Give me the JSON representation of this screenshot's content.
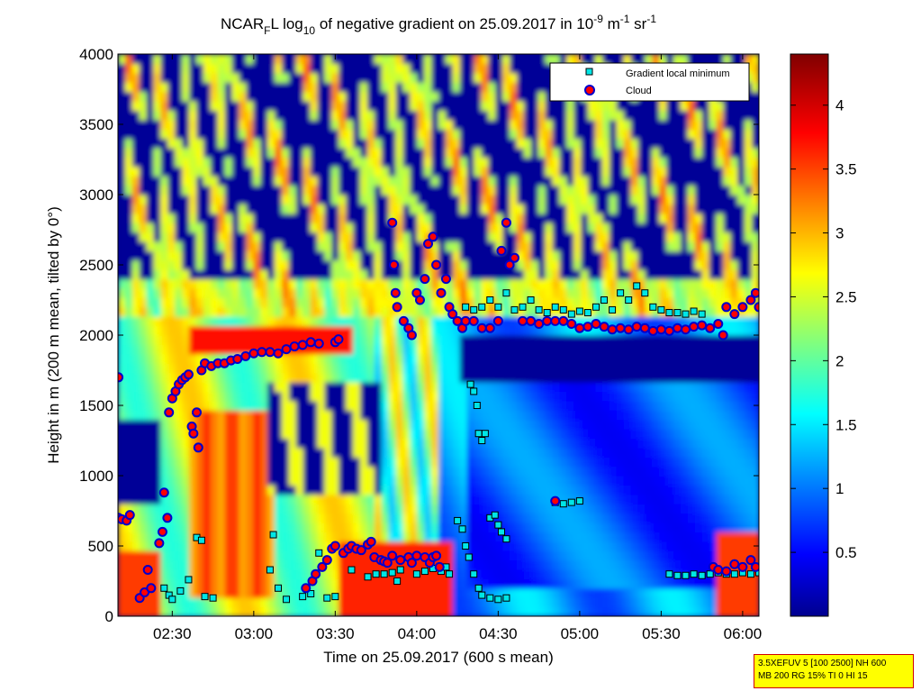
{
  "chart_data": {
    "type": "heatmap",
    "title": "NCAR",
    "title_sub": "F",
    "title_mid": "L log",
    "title_log_base": "10",
    "title_rest": " of negative gradient on 25.09.2017 in 10",
    "title_exp1": "-9",
    "title_unit1": " m",
    "title_exp2": "-1",
    "title_unit2": " sr",
    "title_exp3": "-1",
    "xlabel": "Time on 25.09.2017 (600 s mean)",
    "ylabel": "Height in m (200 m mean, tilted by 0°)",
    "x_range_hours": [
      2.1667,
      6.1
    ],
    "x_ticks": [
      {
        "value": 2.5,
        "label": "02:30"
      },
      {
        "value": 3.0,
        "label": "03:00"
      },
      {
        "value": 3.5,
        "label": "03:30"
      },
      {
        "value": 4.0,
        "label": "04:00"
      },
      {
        "value": 4.5,
        "label": "04:30"
      },
      {
        "value": 5.0,
        "label": "05:00"
      },
      {
        "value": 5.5,
        "label": "05:30"
      },
      {
        "value": 6.0,
        "label": "06:00"
      }
    ],
    "ylim": [
      0,
      4000
    ],
    "y_ticks": [
      0,
      500,
      1000,
      1500,
      2000,
      2500,
      3000,
      3500,
      4000
    ],
    "colorbar": {
      "range": [
        0,
        4.4
      ],
      "ticks": [
        0.5,
        1,
        1.5,
        2,
        2.5,
        3,
        3.5,
        4
      ],
      "colormap": "jet"
    },
    "legend": {
      "position": "top-right",
      "entries": [
        {
          "label": "Gradient local minimum",
          "marker": "square",
          "color": "#00e6e6"
        },
        {
          "label": "Cloud",
          "marker": "circle",
          "color": "#ff0000",
          "edge": "#0000cc"
        }
      ]
    },
    "series": [
      {
        "name": "Cloud",
        "points": [
          [
            2.17,
            1700
          ],
          [
            2.17,
            700
          ],
          [
            2.19,
            690
          ],
          [
            2.22,
            680
          ],
          [
            2.24,
            720
          ],
          [
            2.3,
            130
          ],
          [
            2.33,
            170
          ],
          [
            2.35,
            330
          ],
          [
            2.37,
            200
          ],
          [
            2.42,
            520
          ],
          [
            2.44,
            600
          ],
          [
            2.45,
            880
          ],
          [
            2.47,
            700
          ],
          [
            2.48,
            1450
          ],
          [
            2.5,
            1550
          ],
          [
            2.52,
            1600
          ],
          [
            2.54,
            1650
          ],
          [
            2.56,
            1680
          ],
          [
            2.58,
            1700
          ],
          [
            2.6,
            1720
          ],
          [
            2.62,
            1350
          ],
          [
            2.63,
            1300
          ],
          [
            2.65,
            1450
          ],
          [
            2.66,
            1200
          ],
          [
            2.68,
            1750
          ],
          [
            2.7,
            1800
          ],
          [
            2.74,
            1780
          ],
          [
            2.78,
            1800
          ],
          [
            2.82,
            1800
          ],
          [
            2.86,
            1820
          ],
          [
            2.9,
            1830
          ],
          [
            2.95,
            1850
          ],
          [
            3.0,
            1870
          ],
          [
            3.05,
            1880
          ],
          [
            3.1,
            1880
          ],
          [
            3.15,
            1870
          ],
          [
            3.2,
            1900
          ],
          [
            3.25,
            1920
          ],
          [
            3.3,
            1930
          ],
          [
            3.35,
            1950
          ],
          [
            3.4,
            1940
          ],
          [
            3.5,
            1950
          ],
          [
            3.52,
            1970
          ],
          [
            3.32,
            200
          ],
          [
            3.36,
            250
          ],
          [
            3.38,
            300
          ],
          [
            3.42,
            350
          ],
          [
            3.45,
            400
          ],
          [
            3.48,
            480
          ],
          [
            3.5,
            500
          ],
          [
            3.55,
            450
          ],
          [
            3.58,
            480
          ],
          [
            3.6,
            500
          ],
          [
            3.63,
            480
          ],
          [
            3.66,
            470
          ],
          [
            3.7,
            510
          ],
          [
            3.72,
            530
          ],
          [
            3.74,
            420
          ],
          [
            3.78,
            400
          ],
          [
            3.8,
            390
          ],
          [
            3.82,
            380
          ],
          [
            3.85,
            430
          ],
          [
            3.9,
            400
          ],
          [
            3.95,
            420
          ],
          [
            3.97,
            380
          ],
          [
            4.0,
            430
          ],
          [
            4.05,
            420
          ],
          [
            4.08,
            380
          ],
          [
            4.1,
            420
          ],
          [
            4.12,
            430
          ],
          [
            4.14,
            350
          ],
          [
            3.85,
            2800
          ],
          [
            3.86,
            2500
          ],
          [
            3.87,
            2300
          ],
          [
            3.88,
            2200
          ],
          [
            3.92,
            2100
          ],
          [
            3.95,
            2050
          ],
          [
            3.97,
            2000
          ],
          [
            4.0,
            2300
          ],
          [
            4.02,
            2250
          ],
          [
            4.05,
            2400
          ],
          [
            4.07,
            2650
          ],
          [
            4.1,
            2700
          ],
          [
            4.12,
            2500
          ],
          [
            4.15,
            2300
          ],
          [
            4.18,
            2400
          ],
          [
            4.2,
            2200
          ],
          [
            4.22,
            2150
          ],
          [
            4.25,
            2100
          ],
          [
            4.28,
            2050
          ],
          [
            4.3,
            2100
          ],
          [
            4.35,
            2100
          ],
          [
            4.4,
            2050
          ],
          [
            4.45,
            2050
          ],
          [
            4.5,
            2100
          ],
          [
            4.52,
            2600
          ],
          [
            4.55,
            2800
          ],
          [
            4.57,
            2500
          ],
          [
            4.6,
            2550
          ],
          [
            4.65,
            2100
          ],
          [
            4.7,
            2100
          ],
          [
            4.75,
            2080
          ],
          [
            4.8,
            2100
          ],
          [
            4.85,
            2100
          ],
          [
            4.9,
            2100
          ],
          [
            4.95,
            2080
          ],
          [
            5.0,
            2050
          ],
          [
            5.05,
            2060
          ],
          [
            5.1,
            2080
          ],
          [
            5.15,
            2060
          ],
          [
            5.2,
            2040
          ],
          [
            5.25,
            2050
          ],
          [
            5.3,
            2040
          ],
          [
            5.35,
            2060
          ],
          [
            5.4,
            2050
          ],
          [
            5.45,
            2030
          ],
          [
            5.5,
            2040
          ],
          [
            5.55,
            2030
          ],
          [
            5.6,
            2050
          ],
          [
            5.65,
            2040
          ],
          [
            5.7,
            2060
          ],
          [
            5.75,
            2070
          ],
          [
            5.8,
            2050
          ],
          [
            5.85,
            2080
          ],
          [
            5.88,
            2000
          ],
          [
            5.9,
            2200
          ],
          [
            5.95,
            2150
          ],
          [
            6.0,
            2200
          ],
          [
            6.05,
            2250
          ],
          [
            6.08,
            2300
          ],
          [
            6.1,
            2200
          ],
          [
            4.85,
            820
          ],
          [
            5.82,
            350
          ],
          [
            5.85,
            330
          ],
          [
            5.9,
            320
          ],
          [
            5.95,
            370
          ],
          [
            6.0,
            350
          ],
          [
            6.05,
            400
          ],
          [
            6.08,
            350
          ]
        ]
      },
      {
        "name": "Gradient local minimum",
        "points": [
          [
            2.45,
            200
          ],
          [
            2.48,
            150
          ],
          [
            2.5,
            120
          ],
          [
            2.55,
            180
          ],
          [
            2.6,
            260
          ],
          [
            2.65,
            560
          ],
          [
            2.68,
            540
          ],
          [
            2.7,
            140
          ],
          [
            2.75,
            130
          ],
          [
            3.1,
            330
          ],
          [
            3.12,
            580
          ],
          [
            3.15,
            200
          ],
          [
            3.2,
            120
          ],
          [
            3.3,
            140
          ],
          [
            3.35,
            160
          ],
          [
            3.4,
            450
          ],
          [
            3.45,
            130
          ],
          [
            3.5,
            140
          ],
          [
            3.6,
            330
          ],
          [
            3.7,
            280
          ],
          [
            3.75,
            300
          ],
          [
            3.8,
            300
          ],
          [
            3.85,
            310
          ],
          [
            3.88,
            250
          ],
          [
            3.9,
            330
          ],
          [
            4.0,
            300
          ],
          [
            4.05,
            320
          ],
          [
            4.1,
            340
          ],
          [
            4.15,
            320
          ],
          [
            4.18,
            350
          ],
          [
            4.2,
            300
          ],
          [
            4.25,
            680
          ],
          [
            4.28,
            620
          ],
          [
            4.3,
            500
          ],
          [
            4.32,
            420
          ],
          [
            4.35,
            300
          ],
          [
            4.38,
            200
          ],
          [
            4.4,
            150
          ],
          [
            4.45,
            130
          ],
          [
            4.5,
            120
          ],
          [
            4.55,
            130
          ],
          [
            4.33,
            1650
          ],
          [
            4.35,
            1600
          ],
          [
            4.37,
            1500
          ],
          [
            4.38,
            1300
          ],
          [
            4.4,
            1250
          ],
          [
            4.42,
            1300
          ],
          [
            4.45,
            700
          ],
          [
            4.48,
            720
          ],
          [
            4.5,
            650
          ],
          [
            4.52,
            600
          ],
          [
            4.55,
            550
          ],
          [
            4.3,
            2200
          ],
          [
            4.35,
            2180
          ],
          [
            4.4,
            2200
          ],
          [
            4.45,
            2250
          ],
          [
            4.5,
            2200
          ],
          [
            4.55,
            2300
          ],
          [
            4.6,
            2180
          ],
          [
            4.65,
            2200
          ],
          [
            4.7,
            2250
          ],
          [
            4.75,
            2180
          ],
          [
            4.8,
            2160
          ],
          [
            4.85,
            2200
          ],
          [
            4.9,
            2180
          ],
          [
            4.95,
            2150
          ],
          [
            5.0,
            2170
          ],
          [
            5.05,
            2160
          ],
          [
            5.1,
            2200
          ],
          [
            5.15,
            2250
          ],
          [
            5.2,
            2180
          ],
          [
            5.25,
            2300
          ],
          [
            5.3,
            2250
          ],
          [
            5.35,
            2350
          ],
          [
            5.4,
            2300
          ],
          [
            5.45,
            2200
          ],
          [
            5.5,
            2180
          ],
          [
            5.55,
            2160
          ],
          [
            5.6,
            2160
          ],
          [
            5.65,
            2150
          ],
          [
            5.7,
            2170
          ],
          [
            5.75,
            2150
          ],
          [
            4.85,
            810
          ],
          [
            4.9,
            800
          ],
          [
            4.95,
            810
          ],
          [
            5.0,
            820
          ],
          [
            5.55,
            300
          ],
          [
            5.6,
            290
          ],
          [
            5.65,
            290
          ],
          [
            5.7,
            300
          ],
          [
            5.75,
            290
          ],
          [
            5.8,
            300
          ],
          [
            5.85,
            310
          ],
          [
            5.9,
            300
          ],
          [
            5.95,
            300
          ],
          [
            6.0,
            310
          ],
          [
            6.05,
            300
          ],
          [
            6.1,
            310
          ]
        ]
      }
    ]
  },
  "info_box": {
    "line1": "3.5XEFUV 5 [100 2500] NH 600",
    "line2": "MB 200 RG 15% TI 0 HI 15"
  }
}
